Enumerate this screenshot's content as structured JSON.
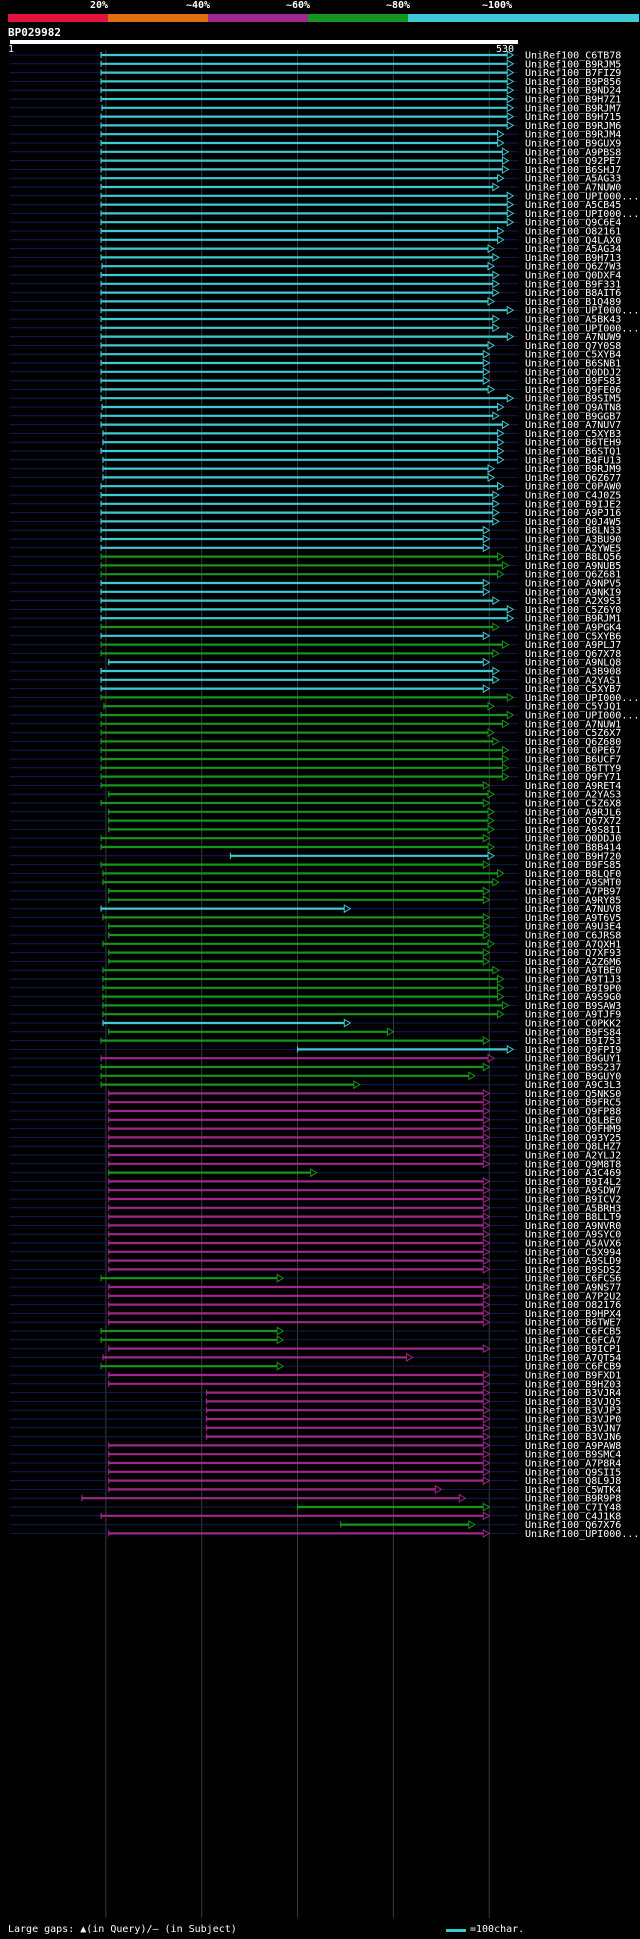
{
  "percent_bar": {
    "labels": [
      "20%",
      "~40%",
      "~60%",
      "~80%",
      "~100%"
    ],
    "colors": [
      "#e0143c",
      "#dc6e14",
      "#a0288c",
      "#14961e",
      "#3ec9d6"
    ]
  },
  "query": {
    "id": "BP029982",
    "start": "1",
    "end": "530",
    "length": 530
  },
  "hits": [
    {
      "id": "UniRef100_C6TB78",
      "color": "#3ec9d6",
      "start": 95,
      "end": 525
    },
    {
      "id": "UniRef100_B9RJM5",
      "color": "#3ec9d6",
      "start": 95,
      "end": 525
    },
    {
      "id": "UniRef100_B7FIZ9",
      "color": "#3ec9d6",
      "start": 95,
      "end": 525
    },
    {
      "id": "UniRef100_B9P856",
      "color": "#3ec9d6",
      "start": 95,
      "end": 525
    },
    {
      "id": "UniRef100_B9ND24",
      "color": "#3ec9d6",
      "start": 95,
      "end": 525
    },
    {
      "id": "UniRef100_B9H7Z1",
      "color": "#3ec9d6",
      "start": 95,
      "end": 525
    },
    {
      "id": "UniRef100_B9RJM7",
      "color": "#3ec9d6",
      "start": 96,
      "end": 525
    },
    {
      "id": "UniRef100_B9H715",
      "color": "#3ec9d6",
      "start": 95,
      "end": 525
    },
    {
      "id": "UniRef100_B9RJM6",
      "color": "#3ec9d6",
      "start": 95,
      "end": 525
    },
    {
      "id": "UniRef100_B9RJM4",
      "color": "#3ec9d6",
      "start": 95,
      "end": 515
    },
    {
      "id": "UniRef100_B9GUX9",
      "color": "#3ec9d6",
      "start": 95,
      "end": 515
    },
    {
      "id": "UniRef100_A9PBS8",
      "color": "#3ec9d6",
      "start": 95,
      "end": 520
    },
    {
      "id": "UniRef100_Q92PE7",
      "color": "#3ec9d6",
      "start": 95,
      "end": 520
    },
    {
      "id": "UniRef100_B6SHJ7",
      "color": "#3ec9d6",
      "start": 95,
      "end": 520
    },
    {
      "id": "UniRef100_A5AG33",
      "color": "#3ec9d6",
      "start": 95,
      "end": 515
    },
    {
      "id": "UniRef100_A7NUW0",
      "color": "#3ec9d6",
      "start": 95,
      "end": 510
    },
    {
      "id": "UniRef100_UPI000...",
      "color": "#3ec9d6",
      "start": 95,
      "end": 525
    },
    {
      "id": "UniRef100_A5CB45",
      "color": "#3ec9d6",
      "start": 95,
      "end": 525
    },
    {
      "id": "UniRef100_UPI000...",
      "color": "#3ec9d6",
      "start": 95,
      "end": 525
    },
    {
      "id": "UniRef100_Q9C6E4",
      "color": "#3ec9d6",
      "start": 95,
      "end": 525
    },
    {
      "id": "UniRef100_O82161",
      "color": "#3ec9d6",
      "start": 95,
      "end": 515
    },
    {
      "id": "UniRef100_Q4LAX0",
      "color": "#3ec9d6",
      "start": 95,
      "end": 515
    },
    {
      "id": "UniRef100_A5AG34",
      "color": "#3ec9d6",
      "start": 95,
      "end": 505
    },
    {
      "id": "UniRef100_B9H713",
      "color": "#3ec9d6",
      "start": 95,
      "end": 510
    },
    {
      "id": "UniRef100_Q6Z7W3",
      "color": "#3ec9d6",
      "start": 96,
      "end": 505
    },
    {
      "id": "UniRef100_Q0DXF4",
      "color": "#3ec9d6",
      "start": 95,
      "end": 510
    },
    {
      "id": "UniRef100_B9F331",
      "color": "#3ec9d6",
      "start": 95,
      "end": 510
    },
    {
      "id": "UniRef100_B8AIT6",
      "color": "#3ec9d6",
      "start": 95,
      "end": 510
    },
    {
      "id": "UniRef100_B1Q489",
      "color": "#3ec9d6",
      "start": 95,
      "end": 505
    },
    {
      "id": "UniRef100_UPI000...",
      "color": "#3ec9d6",
      "start": 95,
      "end": 525
    },
    {
      "id": "UniRef100_A5BK43",
      "color": "#3ec9d6",
      "start": 95,
      "end": 510
    },
    {
      "id": "UniRef100_UPI000...",
      "color": "#3ec9d6",
      "start": 95,
      "end": 510
    },
    {
      "id": "UniRef100_A7NUW9",
      "color": "#3ec9d6",
      "start": 95,
      "end": 525
    },
    {
      "id": "UniRef100_Q7Y0S8",
      "color": "#3ec9d6",
      "start": 95,
      "end": 505
    },
    {
      "id": "UniRef100_C5XYB4",
      "color": "#3ec9d6",
      "start": 95,
      "end": 500
    },
    {
      "id": "UniRef100_B6SNB1",
      "color": "#3ec9d6",
      "start": 95,
      "end": 500
    },
    {
      "id": "UniRef100_Q0DDJ2",
      "color": "#3ec9d6",
      "start": 95,
      "end": 500
    },
    {
      "id": "UniRef100_B9FS83",
      "color": "#3ec9d6",
      "start": 95,
      "end": 500
    },
    {
      "id": "UniRef100_Q9FE06",
      "color": "#3ec9d6",
      "start": 95,
      "end": 505
    },
    {
      "id": "UniRef100_B9SIM5",
      "color": "#3ec9d6",
      "start": 95,
      "end": 525
    },
    {
      "id": "UniRef100_Q9ATN8",
      "color": "#3ec9d6",
      "start": 96,
      "end": 515
    },
    {
      "id": "UniRef100_B9GGB7",
      "color": "#3ec9d6",
      "start": 95,
      "end": 510
    },
    {
      "id": "UniRef100_A7NUV7",
      "color": "#3ec9d6",
      "start": 95,
      "end": 520
    },
    {
      "id": "UniRef100_C5XYB3",
      "color": "#3ec9d6",
      "start": 97,
      "end": 515
    },
    {
      "id": "UniRef100_B6TEH9",
      "color": "#3ec9d6",
      "start": 97,
      "end": 515
    },
    {
      "id": "UniRef100_B6STQ1",
      "color": "#3ec9d6",
      "start": 95,
      "end": 515
    },
    {
      "id": "UniRef100_B4FU13",
      "color": "#3ec9d6",
      "start": 97,
      "end": 515
    },
    {
      "id": "UniRef100_B9RJM9",
      "color": "#3ec9d6",
      "start": 97,
      "end": 505
    },
    {
      "id": "UniRef100_Q6Z677",
      "color": "#3ec9d6",
      "start": 97,
      "end": 505
    },
    {
      "id": "UniRef100_C0PAW0",
      "color": "#3ec9d6",
      "start": 95,
      "end": 515
    },
    {
      "id": "UniRef100_C4J0Z5",
      "color": "#3ec9d6",
      "start": 95,
      "end": 510
    },
    {
      "id": "UniRef100_B9IJE2",
      "color": "#3ec9d6",
      "start": 95,
      "end": 510
    },
    {
      "id": "UniRef100_A9PJ16",
      "color": "#3ec9d6",
      "start": 95,
      "end": 510
    },
    {
      "id": "UniRef100_Q0J4W5",
      "color": "#3ec9d6",
      "start": 95,
      "end": 510
    },
    {
      "id": "UniRef100_B8LN33",
      "color": "#3ec9d6",
      "start": 95,
      "end": 500
    },
    {
      "id": "UniRef100_A3BU90",
      "color": "#3ec9d6",
      "start": 95,
      "end": 500
    },
    {
      "id": "UniRef100_A2YWE5",
      "color": "#3ec9d6",
      "start": 95,
      "end": 500
    },
    {
      "id": "UniRef100_B8LQ56",
      "color": "#14961e",
      "start": 95,
      "end": 515
    },
    {
      "id": "UniRef100_A9NUB5",
      "color": "#14961e",
      "start": 95,
      "end": 520
    },
    {
      "id": "UniRef100_Q6Z681",
      "color": "#14961e",
      "start": 95,
      "end": 515
    },
    {
      "id": "UniRef100_A9NPV5",
      "color": "#3ec9d6",
      "start": 95,
      "end": 500
    },
    {
      "id": "UniRef100_A9NKI9",
      "color": "#3ec9d6",
      "start": 95,
      "end": 500
    },
    {
      "id": "UniRef100_A2X9S3",
      "color": "#3ec9d6",
      "start": 95,
      "end": 510
    },
    {
      "id": "UniRef100_C5Z6Y0",
      "color": "#3ec9d6",
      "start": 95,
      "end": 525
    },
    {
      "id": "UniRef100_B9RJM1",
      "color": "#3ec9d6",
      "start": 95,
      "end": 525
    },
    {
      "id": "UniRef100_A9PGK4",
      "color": "#14961e",
      "start": 95,
      "end": 510
    },
    {
      "id": "UniRef100_C5XYB6",
      "color": "#3ec9d6",
      "start": 95,
      "end": 500
    },
    {
      "id": "UniRef100_A9PLJ7",
      "color": "#14961e",
      "start": 95,
      "end": 520
    },
    {
      "id": "UniRef100_Q67X78",
      "color": "#14961e",
      "start": 95,
      "end": 510
    },
    {
      "id": "UniRef100_A9NLQ8",
      "color": "#3ec9d6",
      "start": 103,
      "end": 500
    },
    {
      "id": "UniRef100_A3B908",
      "color": "#3ec9d6",
      "start": 95,
      "end": 510
    },
    {
      "id": "UniRef100_A2YAS1",
      "color": "#3ec9d6",
      "start": 95,
      "end": 510
    },
    {
      "id": "UniRef100_C5XYB7",
      "color": "#3ec9d6",
      "start": 95,
      "end": 500
    },
    {
      "id": "UniRef100_UPI000...",
      "color": "#14961e",
      "start": 95,
      "end": 525
    },
    {
      "id": "UniRef100_C5YJQ1",
      "color": "#14961e",
      "start": 98,
      "end": 505
    },
    {
      "id": "UniRef100_UPI000...",
      "color": "#14961e",
      "start": 95,
      "end": 525
    },
    {
      "id": "UniRef100_A7NUW1",
      "color": "#14961e",
      "start": 95,
      "end": 520
    },
    {
      "id": "UniRef100_C5Z6X7",
      "color": "#14961e",
      "start": 95,
      "end": 505
    },
    {
      "id": "UniRef100_Q6Z680",
      "color": "#14961e",
      "start": 95,
      "end": 510
    },
    {
      "id": "UniRef100_C0PE67",
      "color": "#14961e",
      "start": 95,
      "end": 520
    },
    {
      "id": "UniRef100_B6UCF7",
      "color": "#14961e",
      "start": 95,
      "end": 520
    },
    {
      "id": "UniRef100_B6TTY9",
      "color": "#14961e",
      "start": 95,
      "end": 520
    },
    {
      "id": "UniRef100_Q9FY71",
      "color": "#14961e",
      "start": 95,
      "end": 520
    },
    {
      "id": "UniRef100_A9RET4",
      "color": "#14961e",
      "start": 95,
      "end": 500
    },
    {
      "id": "UniRef100_A2YAS3",
      "color": "#14961e",
      "start": 103,
      "end": 505
    },
    {
      "id": "UniRef100_C5Z6X8",
      "color": "#14961e",
      "start": 95,
      "end": 500
    },
    {
      "id": "UniRef100_A9RJL6",
      "color": "#14961e",
      "start": 103,
      "end": 505
    },
    {
      "id": "UniRef100_Q67X72",
      "color": "#14961e",
      "start": 103,
      "end": 505
    },
    {
      "id": "UniRef100_A9S8I1",
      "color": "#14961e",
      "start": 103,
      "end": 505
    },
    {
      "id": "UniRef100_Q0DDJ0",
      "color": "#14961e",
      "start": 95,
      "end": 500
    },
    {
      "id": "UniRef100_B8B414",
      "color": "#14961e",
      "start": 95,
      "end": 505
    },
    {
      "id": "UniRef100_B9H720",
      "color": "#3ec9d6",
      "start": 230,
      "end": 505
    },
    {
      "id": "UniRef100_B9FS85",
      "color": "#14961e",
      "start": 95,
      "end": 500
    },
    {
      "id": "UniRef100_B8LQF0",
      "color": "#14961e",
      "start": 97,
      "end": 515
    },
    {
      "id": "UniRef100_A9SMT0",
      "color": "#14961e",
      "start": 97,
      "end": 510
    },
    {
      "id": "UniRef100_A7PB97",
      "color": "#14961e",
      "start": 103,
      "end": 500
    },
    {
      "id": "UniRef100_A9RY85",
      "color": "#14961e",
      "start": 103,
      "end": 500
    },
    {
      "id": "UniRef100_A7NUV8",
      "color": "#3ec9d6",
      "start": 95,
      "end": 355
    },
    {
      "id": "UniRef100_A9T6V5",
      "color": "#14961e",
      "start": 97,
      "end": 500
    },
    {
      "id": "UniRef100_A9U3E4",
      "color": "#14961e",
      "start": 103,
      "end": 500
    },
    {
      "id": "UniRef100_C6JRS8",
      "color": "#14961e",
      "start": 103,
      "end": 500
    },
    {
      "id": "UniRef100_A7QXH1",
      "color": "#14961e",
      "start": 97,
      "end": 505
    },
    {
      "id": "UniRef100_Q7XF93",
      "color": "#14961e",
      "start": 103,
      "end": 500
    },
    {
      "id": "UniRef100_A2Z6M6",
      "color": "#14961e",
      "start": 103,
      "end": 500
    },
    {
      "id": "UniRef100_A9TBE0",
      "color": "#14961e",
      "start": 97,
      "end": 510
    },
    {
      "id": "UniRef100_A9T1J3",
      "color": "#14961e",
      "start": 97,
      "end": 515
    },
    {
      "id": "UniRef100_B9I9P0",
      "color": "#14961e",
      "start": 97,
      "end": 515
    },
    {
      "id": "UniRef100_A9S9G0",
      "color": "#14961e",
      "start": 97,
      "end": 515
    },
    {
      "id": "UniRef100_B9SAW3",
      "color": "#14961e",
      "start": 97,
      "end": 520
    },
    {
      "id": "UniRef100_A9TJF9",
      "color": "#14961e",
      "start": 97,
      "end": 515
    },
    {
      "id": "UniRef100_C0PKK2",
      "color": "#3ec9d6",
      "start": 97,
      "end": 355
    },
    {
      "id": "UniRef100_B9FS84",
      "color": "#14961e",
      "start": 103,
      "end": 400
    },
    {
      "id": "UniRef100_B9I753",
      "color": "#14961e",
      "start": 95,
      "end": 500
    },
    {
      "id": "UniRef100_Q9FPI9",
      "color": "#3ec9d6",
      "start": 300,
      "end": 525
    },
    {
      "id": "UniRef100_B9GUY1",
      "color": "#a0288c",
      "start": 95,
      "end": 505
    },
    {
      "id": "UniRef100_B9S237",
      "color": "#14961e",
      "start": 95,
      "end": 500
    },
    {
      "id": "UniRef100_B9GUY0",
      "color": "#14961e",
      "start": 95,
      "end": 485
    },
    {
      "id": "UniRef100_A9C3L3",
      "color": "#14961e",
      "start": 95,
      "end": 365
    },
    {
      "id": "UniRef100_Q5NKS0",
      "color": "#a0288c",
      "start": 103,
      "end": 500
    },
    {
      "id": "UniRef100_B9FRC5",
      "color": "#a0288c",
      "start": 103,
      "end": 500
    },
    {
      "id": "UniRef100_Q9FP88",
      "color": "#a0288c",
      "start": 103,
      "end": 500
    },
    {
      "id": "UniRef100_Q8LBE0",
      "color": "#a0288c",
      "start": 103,
      "end": 500
    },
    {
      "id": "UniRef100_Q9FHM9",
      "color": "#a0288c",
      "start": 103,
      "end": 500
    },
    {
      "id": "UniRef100_Q93Y25",
      "color": "#a0288c",
      "start": 103,
      "end": 500
    },
    {
      "id": "UniRef100_Q8LHZ7",
      "color": "#a0288c",
      "start": 103,
      "end": 500
    },
    {
      "id": "UniRef100_A2YLJ2",
      "color": "#a0288c",
      "start": 103,
      "end": 500
    },
    {
      "id": "UniRef100_Q9M8T8",
      "color": "#a0288c",
      "start": 103,
      "end": 500
    },
    {
      "id": "UniRef100_A3C469",
      "color": "#14961e",
      "start": 103,
      "end": 320
    },
    {
      "id": "UniRef100_B9I4L2",
      "color": "#a0288c",
      "start": 103,
      "end": 500
    },
    {
      "id": "UniRef100_A9SDW7",
      "color": "#a0288c",
      "start": 103,
      "end": 500
    },
    {
      "id": "UniRef100_B9ICV2",
      "color": "#a0288c",
      "start": 103,
      "end": 500
    },
    {
      "id": "UniRef100_A5BRH3",
      "color": "#a0288c",
      "start": 103,
      "end": 500
    },
    {
      "id": "UniRef100_B8LLT9",
      "color": "#a0288c",
      "start": 103,
      "end": 500
    },
    {
      "id": "UniRef100_A9NVR0",
      "color": "#a0288c",
      "start": 103,
      "end": 500
    },
    {
      "id": "UniRef100_A9SYC0",
      "color": "#a0288c",
      "start": 103,
      "end": 500
    },
    {
      "id": "UniRef100_A5AVX6",
      "color": "#a0288c",
      "start": 103,
      "end": 500
    },
    {
      "id": "UniRef100_C5X994",
      "color": "#a0288c",
      "start": 103,
      "end": 500
    },
    {
      "id": "UniRef100_A9SLD9",
      "color": "#a0288c",
      "start": 103,
      "end": 500
    },
    {
      "id": "UniRef100_B9SDS2",
      "color": "#a0288c",
      "start": 103,
      "end": 500
    },
    {
      "id": "UniRef100_C6FCS6",
      "color": "#14961e",
      "start": 95,
      "end": 285
    },
    {
      "id": "UniRef100_A9NS77",
      "color": "#a0288c",
      "start": 103,
      "end": 500
    },
    {
      "id": "UniRef100_A7P2U2",
      "color": "#a0288c",
      "start": 103,
      "end": 500
    },
    {
      "id": "UniRef100_O82176",
      "color": "#a0288c",
      "start": 103,
      "end": 500
    },
    {
      "id": "UniRef100_B9HPX4",
      "color": "#a0288c",
      "start": 103,
      "end": 500
    },
    {
      "id": "UniRef100_B6TWE7",
      "color": "#a0288c",
      "start": 103,
      "end": 500
    },
    {
      "id": "UniRef100_C6FCB5",
      "color": "#14961e",
      "start": 95,
      "end": 285
    },
    {
      "id": "UniRef100_C6FCA7",
      "color": "#14961e",
      "start": 95,
      "end": 285
    },
    {
      "id": "UniRef100_B9ICP1",
      "color": "#a0288c",
      "start": 103,
      "end": 500
    },
    {
      "id": "UniRef100_A7QT54",
      "color": "#a0288c",
      "start": 97,
      "end": 420
    },
    {
      "id": "UniRef100_C6FCB9",
      "color": "#14961e",
      "start": 95,
      "end": 285
    },
    {
      "id": "UniRef100_B9FXD1",
      "color": "#a0288c",
      "start": 103,
      "end": 500
    },
    {
      "id": "UniRef100_B9HZ03",
      "color": "#a0288c",
      "start": 103,
      "end": 500
    },
    {
      "id": "UniRef100_B3VJR4",
      "color": "#a0288c",
      "start": 205,
      "end": 500
    },
    {
      "id": "UniRef100_B3VJQ5",
      "color": "#a0288c",
      "start": 205,
      "end": 500
    },
    {
      "id": "UniRef100_B3VJP3",
      "color": "#a0288c",
      "start": 205,
      "end": 500
    },
    {
      "id": "UniRef100_B3VJP0",
      "color": "#a0288c",
      "start": 205,
      "end": 500
    },
    {
      "id": "UniRef100_B3VJN7",
      "color": "#a0288c",
      "start": 205,
      "end": 500
    },
    {
      "id": "UniRef100_B3VJN6",
      "color": "#a0288c",
      "start": 205,
      "end": 500
    },
    {
      "id": "UniRef100_A9PAW8",
      "color": "#a0288c",
      "start": 103,
      "end": 500
    },
    {
      "id": "UniRef100_B9SMC4",
      "color": "#a0288c",
      "start": 103,
      "end": 500
    },
    {
      "id": "UniRef100_A7P8R4",
      "color": "#a0288c",
      "start": 103,
      "end": 500
    },
    {
      "id": "UniRef100_Q9SII5",
      "color": "#a0288c",
      "start": 103,
      "end": 500
    },
    {
      "id": "UniRef100_Q8L9J8",
      "color": "#a0288c",
      "start": 103,
      "end": 500
    },
    {
      "id": "UniRef100_C5WTK4",
      "color": "#a0288c",
      "start": 103,
      "end": 450
    },
    {
      "id": "UniRef100_B9R9P8",
      "color": "#a0288c",
      "start": 75,
      "end": 475
    },
    {
      "id": "UniRef100_C7IY48",
      "color": "#14961e",
      "start": 300,
      "end": 500
    },
    {
      "id": "UniRef100_C4J1K8",
      "color": "#a0288c",
      "start": 95,
      "end": 500
    },
    {
      "id": "UniRef100_Q67X76",
      "color": "#14961e",
      "start": 345,
      "end": 485
    },
    {
      "id": "UniRef100_UPI000...",
      "color": "#a0288c",
      "start": 103,
      "end": 500
    }
  ],
  "footer": {
    "legend": "Large gaps: ▲(in Query)/— (in Subject)",
    "scale": "=100char."
  }
}
